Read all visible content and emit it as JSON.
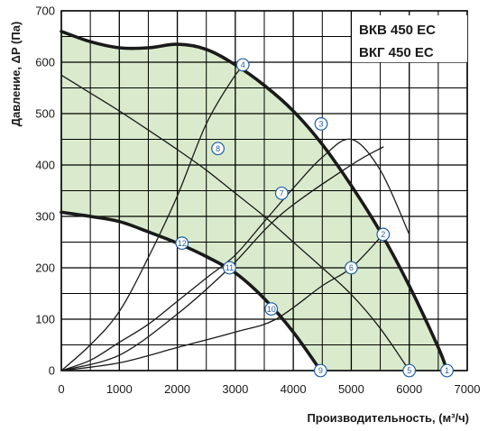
{
  "chart_data": {
    "type": "line",
    "title": "",
    "models": [
      "ВКВ 450 EC",
      "ВКГ 450 EC"
    ],
    "xlabel": "Производительность, (м³/ч)",
    "ylabel": "Давление, ΔP (Па)",
    "xlim": [
      0,
      7000
    ],
    "ylim": [
      0,
      700
    ],
    "xticks": [
      0,
      1000,
      2000,
      3000,
      4000,
      5000,
      6000,
      7000
    ],
    "yticks": [
      0,
      100,
      200,
      300,
      400,
      500,
      600,
      700
    ],
    "grid": true,
    "colors": {
      "region_fill": "#d9ebcc",
      "grid": "#000000",
      "curve": "#1a1a1a",
      "marker_stroke": "#1f5fa8"
    },
    "series": [
      {
        "role": "max-speed-curve",
        "x": [
          0,
          500,
          1000,
          1500,
          2000,
          2500,
          3000,
          3500,
          4000,
          4500,
          5000,
          5500,
          6000,
          6500,
          6650
        ],
        "y": [
          660,
          640,
          628,
          628,
          635,
          625,
          595,
          555,
          505,
          440,
          360,
          270,
          165,
          45,
          0
        ]
      },
      {
        "role": "min-speed-curve",
        "x": [
          0,
          500,
          1000,
          1500,
          2000,
          2500,
          3000,
          3500,
          4000,
          4470
        ],
        "y": [
          308,
          300,
          290,
          270,
          248,
          222,
          190,
          140,
          75,
          0
        ]
      },
      {
        "role": "system-curve",
        "x": [
          0,
          500,
          1000,
          1500,
          2000,
          2500,
          3000,
          3200
        ],
        "y": [
          0,
          50,
          115,
          220,
          340,
          480,
          575,
          595
        ]
      },
      {
        "role": "system-curve",
        "x": [
          0,
          500,
          1000,
          1500,
          2000,
          2500,
          3000,
          3500,
          4000,
          4500,
          5000,
          5500,
          6000
        ],
        "y": [
          0,
          20,
          55,
          90,
          135,
          180,
          225,
          290,
          355,
          415,
          450,
          390,
          265
        ]
      },
      {
        "role": "system-curve",
        "x": [
          0,
          1000,
          2000,
          2900,
          3800,
          5000,
          5550
        ],
        "y": [
          0,
          30,
          110,
          200,
          305,
          400,
          435
        ]
      },
      {
        "role": "system-curve",
        "x": [
          0,
          1000,
          2000,
          3000,
          3700,
          4500,
          5000,
          5550
        ],
        "y": [
          0,
          15,
          45,
          75,
          100,
          165,
          200,
          265
        ]
      },
      {
        "role": "system-curve",
        "x": [
          0,
          500,
          1000,
          1500,
          2000,
          2500,
          3000,
          3500,
          4000,
          4500,
          5000,
          5500,
          6000
        ],
        "y": [
          575,
          540,
          505,
          468,
          430,
          390,
          345,
          300,
          250,
          200,
          148,
          82,
          0
        ]
      }
    ],
    "markers": [
      {
        "label": "1",
        "x": 6650,
        "y": 0
      },
      {
        "label": "2",
        "x": 5550,
        "y": 265
      },
      {
        "label": "3",
        "x": 4480,
        "y": 480
      },
      {
        "label": "4",
        "x": 3130,
        "y": 595
      },
      {
        "label": "5",
        "x": 6000,
        "y": 0
      },
      {
        "label": "6",
        "x": 5000,
        "y": 200
      },
      {
        "label": "7",
        "x": 3800,
        "y": 345
      },
      {
        "label": "8",
        "x": 2700,
        "y": 432
      },
      {
        "label": "9",
        "x": 4470,
        "y": 0
      },
      {
        "label": "10",
        "x": 3620,
        "y": 120
      },
      {
        "label": "11",
        "x": 2900,
        "y": 200
      },
      {
        "label": "12",
        "x": 2080,
        "y": 248
      }
    ]
  }
}
